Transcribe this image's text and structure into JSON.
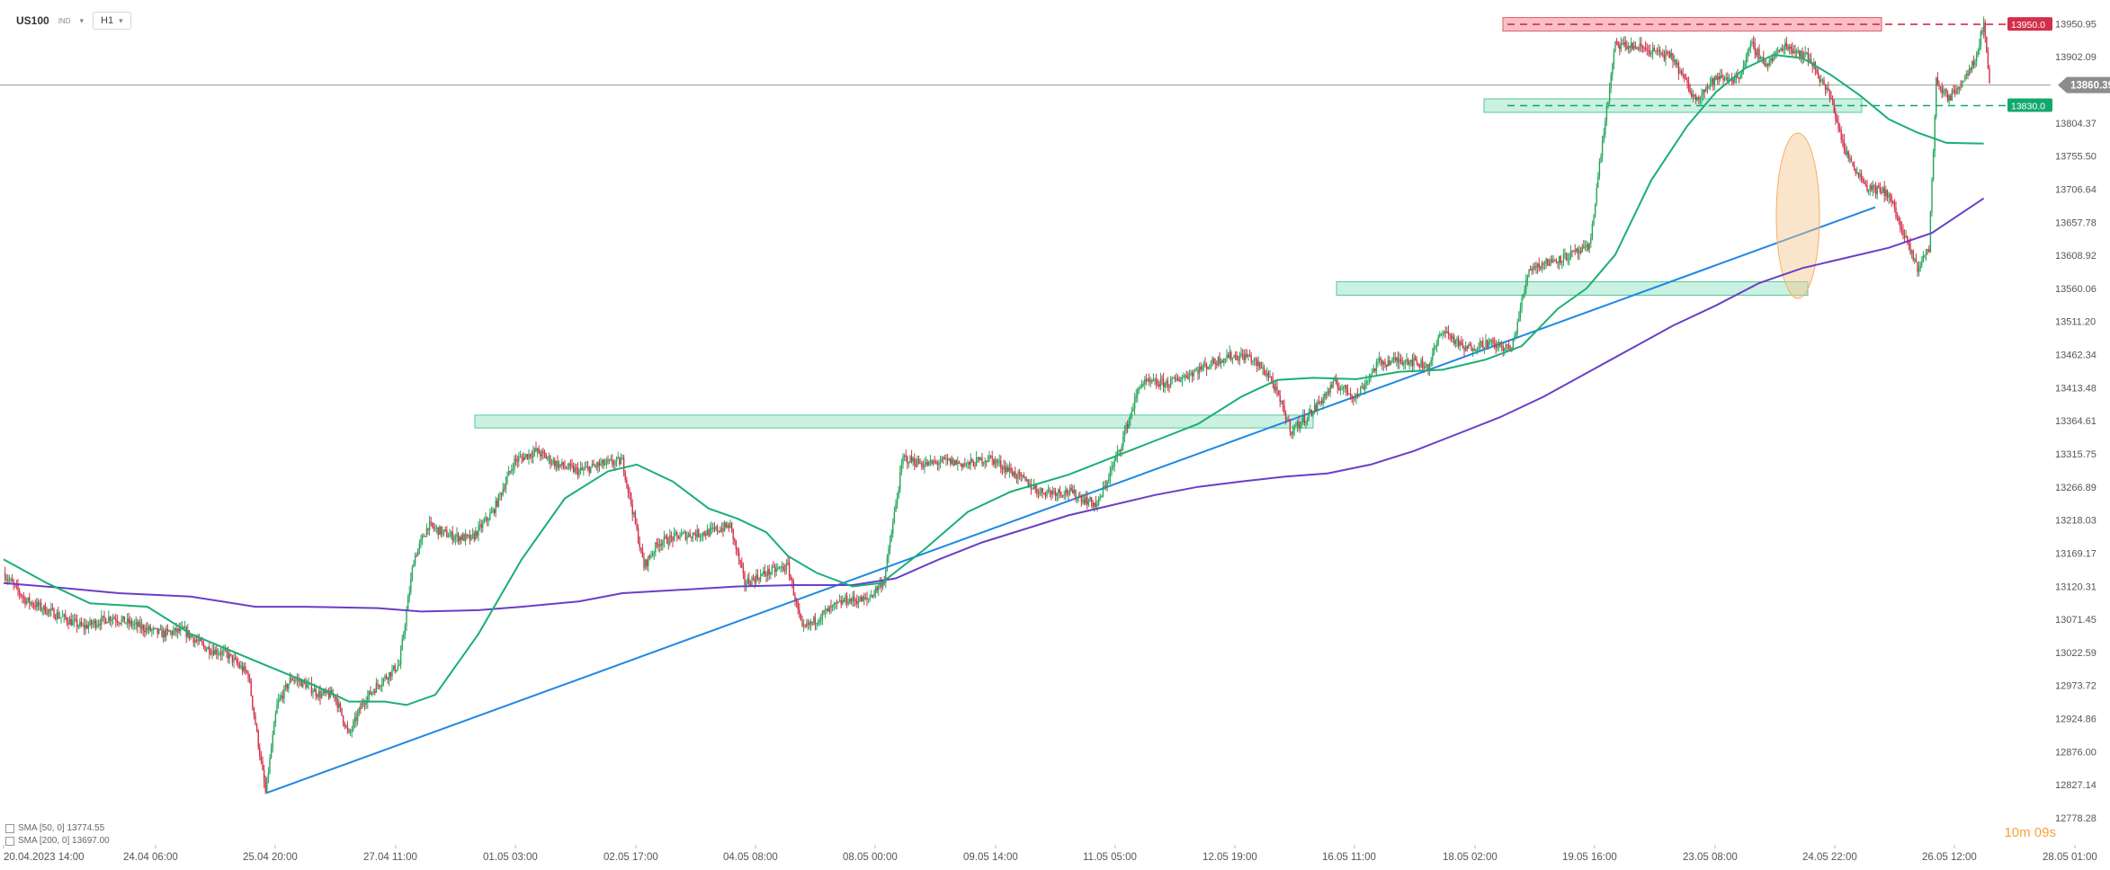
{
  "header": {
    "symbol": "US100",
    "feed": "IND",
    "timeframe": "H1"
  },
  "legend": {
    "sma50": "SMA [50, 0] 13774.55",
    "sma200": "SMA [200, 0] 13697.00"
  },
  "timer": "10m 09s",
  "colors": {
    "bull": "#26a65b",
    "bear": "#d32f4a",
    "sma50": "#1aaf74",
    "sma200": "#6a3ec7",
    "trend": "#1e88e5",
    "zone": "#9ee5c8",
    "resist": "#f28b96",
    "ellipse": "#f7c689"
  },
  "chart_data": {
    "type": "line",
    "title": "",
    "xlabel": "",
    "ylabel": "",
    "ylim": [
      12778.28,
      13970
    ],
    "x_ticks": [
      "20.04.2023 14:00",
      "24.04 06:00",
      "25.04 20:00",
      "27.04 11:00",
      "01.05 03:00",
      "02.05 17:00",
      "04.05 08:00",
      "08.05 00:00",
      "09.05 14:00",
      "11.05 05:00",
      "12.05 19:00",
      "16.05 11:00",
      "18.05 02:00",
      "19.05 16:00",
      "23.05 08:00",
      "24.05 22:00",
      "26.05 12:00",
      "28.05 01:00"
    ],
    "y_ticks": [
      13950.95,
      13902.09,
      13804.37,
      13755.5,
      13706.64,
      13657.78,
      13608.92,
      13560.06,
      13511.2,
      13462.34,
      13413.48,
      13364.61,
      13315.75,
      13266.89,
      13218.03,
      13169.17,
      13120.31,
      13071.45,
      13022.59,
      12973.72,
      12924.86,
      12876.0,
      12827.14,
      12778.28
    ],
    "current_price": "13860.39",
    "levels": [
      {
        "value": 13950.0,
        "label": "13950.0",
        "color": "#d32f4a"
      },
      {
        "value": 13830.0,
        "label": "13830.0",
        "color": "#13a86b"
      }
    ],
    "series": [
      {
        "name": "SMA [50, 0]",
        "values": [
          [
            0,
            13160
          ],
          [
            30,
            13125
          ],
          [
            60,
            13095
          ],
          [
            100,
            13090
          ],
          [
            130,
            13050
          ],
          [
            175,
            13010
          ],
          [
            215,
            12975
          ],
          [
            240,
            12950
          ],
          [
            265,
            12950
          ],
          [
            280,
            12945
          ],
          [
            300,
            12960
          ],
          [
            330,
            13050
          ],
          [
            360,
            13160
          ],
          [
            390,
            13250
          ],
          [
            420,
            13290
          ],
          [
            440,
            13300
          ],
          [
            465,
            13275
          ],
          [
            490,
            13235
          ],
          [
            510,
            13220
          ],
          [
            530,
            13200
          ],
          [
            545,
            13165
          ],
          [
            565,
            13140
          ],
          [
            590,
            13120
          ],
          [
            610,
            13125
          ],
          [
            640,
            13175
          ],
          [
            670,
            13230
          ],
          [
            700,
            13260
          ],
          [
            740,
            13285
          ],
          [
            770,
            13310
          ],
          [
            800,
            13335
          ],
          [
            830,
            13360
          ],
          [
            860,
            13400
          ],
          [
            885,
            13425
          ],
          [
            910,
            13428
          ],
          [
            940,
            13426
          ],
          [
            970,
            13437
          ],
          [
            1000,
            13440
          ],
          [
            1030,
            13455
          ],
          [
            1055,
            13475
          ],
          [
            1080,
            13530
          ],
          [
            1100,
            13560
          ],
          [
            1120,
            13610
          ],
          [
            1145,
            13720
          ],
          [
            1170,
            13800
          ],
          [
            1190,
            13850
          ],
          [
            1210,
            13885
          ],
          [
            1230,
            13905
          ],
          [
            1250,
            13900
          ],
          [
            1270,
            13875
          ],
          [
            1290,
            13845
          ],
          [
            1310,
            13810
          ],
          [
            1330,
            13790
          ],
          [
            1350,
            13775
          ],
          [
            1376,
            13774
          ]
        ]
      },
      {
        "name": "SMA [200, 0]",
        "values": [
          [
            0,
            13125
          ],
          [
            40,
            13118
          ],
          [
            80,
            13110
          ],
          [
            130,
            13105
          ],
          [
            175,
            13090
          ],
          [
            210,
            13090
          ],
          [
            260,
            13088
          ],
          [
            290,
            13083
          ],
          [
            330,
            13085
          ],
          [
            360,
            13090
          ],
          [
            400,
            13098
          ],
          [
            430,
            13110
          ],
          [
            470,
            13115
          ],
          [
            510,
            13120
          ],
          [
            550,
            13122
          ],
          [
            590,
            13122
          ],
          [
            620,
            13132
          ],
          [
            650,
            13160
          ],
          [
            680,
            13185
          ],
          [
            710,
            13205
          ],
          [
            740,
            13225
          ],
          [
            770,
            13240
          ],
          [
            800,
            13255
          ],
          [
            830,
            13267
          ],
          [
            860,
            13275
          ],
          [
            890,
            13282
          ],
          [
            920,
            13287
          ],
          [
            950,
            13300
          ],
          [
            980,
            13320
          ],
          [
            1010,
            13345
          ],
          [
            1040,
            13370
          ],
          [
            1070,
            13400
          ],
          [
            1100,
            13435
          ],
          [
            1130,
            13470
          ],
          [
            1160,
            13505
          ],
          [
            1190,
            13535
          ],
          [
            1220,
            13568
          ],
          [
            1250,
            13590
          ],
          [
            1280,
            13605
          ],
          [
            1310,
            13620
          ],
          [
            1340,
            13642
          ],
          [
            1376,
            13693
          ]
        ]
      },
      {
        "name": "US100",
        "values": [
          [
            0,
            13140
          ],
          [
            15,
            13100
          ],
          [
            35,
            13080
          ],
          [
            55,
            13060
          ],
          [
            75,
            13075
          ],
          [
            95,
            13060
          ],
          [
            110,
            13050
          ],
          [
            125,
            13055
          ],
          [
            140,
            13030
          ],
          [
            155,
            13020
          ],
          [
            170,
            12990
          ],
          [
            182,
            12815
          ],
          [
            190,
            12945
          ],
          [
            200,
            12985
          ],
          [
            210,
            12975
          ],
          [
            220,
            12960
          ],
          [
            230,
            12960
          ],
          [
            240,
            12900
          ],
          [
            250,
            12950
          ],
          [
            260,
            12975
          ],
          [
            275,
            13005
          ],
          [
            285,
            13160
          ],
          [
            295,
            13210
          ],
          [
            310,
            13195
          ],
          [
            325,
            13190
          ],
          [
            340,
            13230
          ],
          [
            355,
            13305
          ],
          [
            370,
            13320
          ],
          [
            385,
            13300
          ],
          [
            400,
            13290
          ],
          [
            415,
            13300
          ],
          [
            430,
            13305
          ],
          [
            445,
            13150
          ],
          [
            455,
            13185
          ],
          [
            470,
            13195
          ],
          [
            490,
            13200
          ],
          [
            505,
            13210
          ],
          [
            515,
            13125
          ],
          [
            530,
            13140
          ],
          [
            545,
            13150
          ],
          [
            555,
            13055
          ],
          [
            570,
            13080
          ],
          [
            585,
            13100
          ],
          [
            600,
            13100
          ],
          [
            612,
            13130
          ],
          [
            625,
            13310
          ],
          [
            640,
            13300
          ],
          [
            655,
            13305
          ],
          [
            670,
            13300
          ],
          [
            685,
            13310
          ],
          [
            700,
            13290
          ],
          [
            720,
            13260
          ],
          [
            740,
            13260
          ],
          [
            760,
            13240
          ],
          [
            775,
            13320
          ],
          [
            790,
            13420
          ],
          [
            810,
            13420
          ],
          [
            830,
            13440
          ],
          [
            850,
            13460
          ],
          [
            865,
            13460
          ],
          [
            880,
            13430
          ],
          [
            895,
            13350
          ],
          [
            910,
            13380
          ],
          [
            925,
            13420
          ],
          [
            940,
            13400
          ],
          [
            955,
            13450
          ],
          [
            975,
            13455
          ],
          [
            990,
            13445
          ],
          [
            1000,
            13500
          ],
          [
            1015,
            13470
          ],
          [
            1030,
            13480
          ],
          [
            1048,
            13470
          ],
          [
            1060,
            13590
          ],
          [
            1075,
            13600
          ],
          [
            1090,
            13610
          ],
          [
            1102,
            13620
          ],
          [
            1110,
            13760
          ],
          [
            1120,
            13920
          ],
          [
            1140,
            13915
          ],
          [
            1160,
            13900
          ],
          [
            1175,
            13840
          ],
          [
            1190,
            13870
          ],
          [
            1205,
            13870
          ],
          [
            1215,
            13920
          ],
          [
            1225,
            13890
          ],
          [
            1238,
            13920
          ],
          [
            1255,
            13900
          ],
          [
            1270,
            13840
          ],
          [
            1280,
            13760
          ],
          [
            1295,
            13710
          ],
          [
            1310,
            13700
          ],
          [
            1320,
            13640
          ],
          [
            1330,
            13590
          ],
          [
            1338,
            13620
          ],
          [
            1343,
            13865
          ],
          [
            1352,
            13840
          ],
          [
            1362,
            13870
          ],
          [
            1370,
            13900
          ],
          [
            1376,
            13950
          ],
          [
            1380,
            13870
          ]
        ]
      }
    ]
  }
}
